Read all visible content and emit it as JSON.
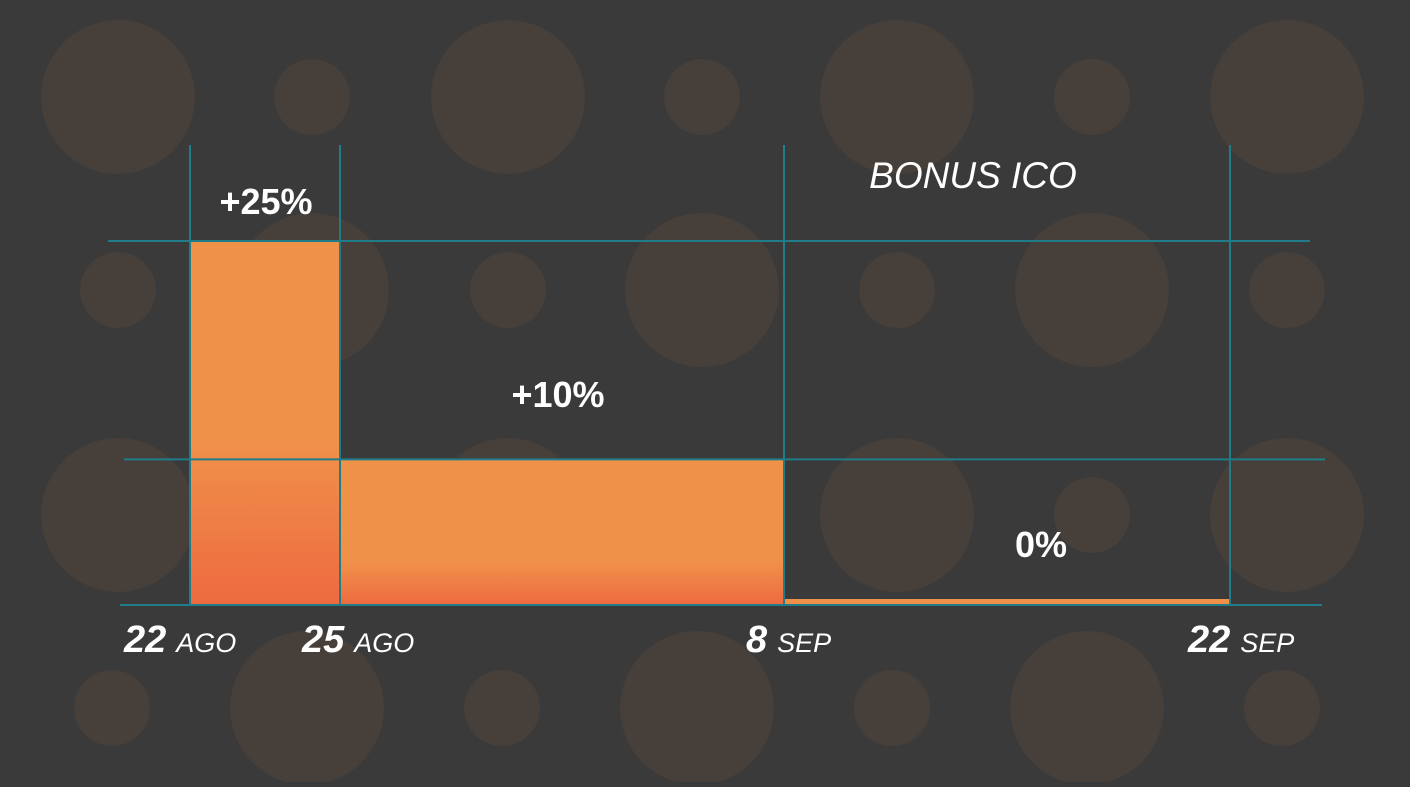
{
  "colors": {
    "background": "#3a3a3a",
    "dots": "#463f3a",
    "grid": "#1f7c88",
    "bar": "#f0914a",
    "bar_bottom": "#ed6a40",
    "text": "#ffffff"
  },
  "chart_data": {
    "type": "bar",
    "title": "BONUS ICO",
    "xlabel": "",
    "ylabel": "",
    "ylim": [
      0,
      25
    ],
    "grid": true,
    "grid_y_values": [
      10,
      25
    ],
    "boundaries": [
      {
        "num": "22",
        "month": "AGO"
      },
      {
        "num": "25",
        "month": "AGO"
      },
      {
        "num": "8",
        "month": "SEP"
      },
      {
        "num": "22",
        "month": "SEP"
      }
    ],
    "bars": [
      {
        "start": "22 AGO",
        "end": "25 AGO",
        "value": 25,
        "label": "+25%"
      },
      {
        "start": "25 AGO",
        "end": "8 SEP",
        "value": 10,
        "label": "+10%"
      },
      {
        "start": "8 SEP",
        "end": "22 SEP",
        "value": 0,
        "label": "0%"
      }
    ]
  }
}
